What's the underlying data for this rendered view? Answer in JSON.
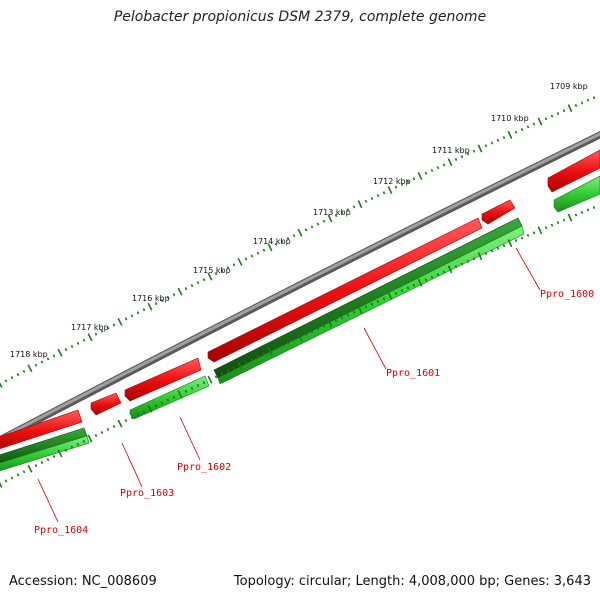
{
  "title": "Pelobacter propionicus DSM 2379, complete genome",
  "footer": {
    "accession": "Accession: NC_008609",
    "summary": "Topology: circular; Length: 4,008,000 bp; Genes: 3,643"
  },
  "scale_labels": [
    "1709 kbp",
    "1710 kbp",
    "1711 kbp",
    "1712 kbp",
    "1713 kbp",
    "1714 kbp",
    "1715 kbp",
    "1716 kbp",
    "1717 kbp",
    "1718 kbp"
  ],
  "genes": [
    {
      "name": "Ppro_1600"
    },
    {
      "name": "Ppro_1601"
    },
    {
      "name": "Ppro_1602"
    },
    {
      "name": "Ppro_1603"
    },
    {
      "name": "Ppro_1604"
    }
  ],
  "colors": {
    "backbone": "#888888",
    "red_gene": "#ee1111",
    "green_gene": "#33cc33",
    "dark_green_gene": "#1f8a1f",
    "tick": "#1a7a1a",
    "label": "#d40000"
  }
}
